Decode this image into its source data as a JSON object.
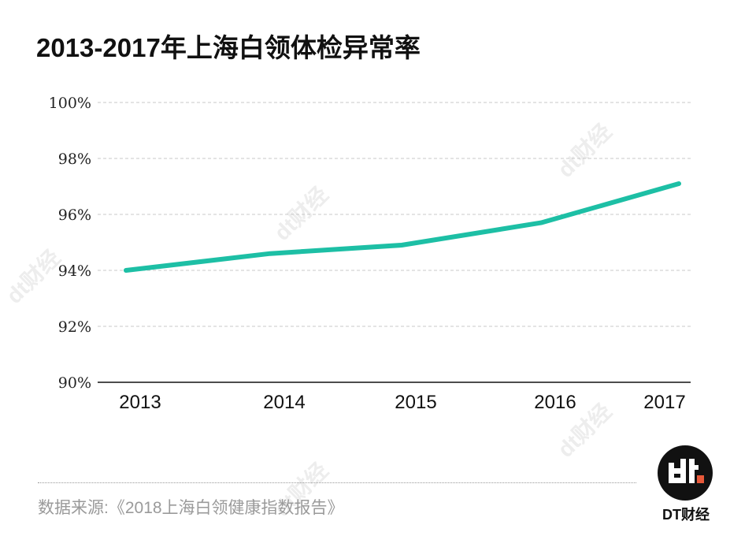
{
  "title": "2013-2017年上海白领体检异常率",
  "chart_data": {
    "type": "line",
    "title": "2013-2017年上海白领体检异常率",
    "xlabel": "",
    "ylabel": "",
    "categories": [
      "2013",
      "2014",
      "2015",
      "2016",
      "2017"
    ],
    "series": [
      {
        "name": "体检异常率",
        "values": [
          94.0,
          94.6,
          94.9,
          95.7,
          97.1
        ],
        "color": "#1dbfa5"
      }
    ],
    "yticks": [
      "90%",
      "92%",
      "94%",
      "96%",
      "98%",
      "100%"
    ],
    "ylim": [
      90,
      100
    ],
    "grid": true,
    "legend": "none"
  },
  "source": "数据来源:《2018上海白领健康指数报告》",
  "logo": {
    "mark": "dt",
    "label": "DT财经",
    "accent": "#e8593a"
  },
  "watermark": "dt财经"
}
